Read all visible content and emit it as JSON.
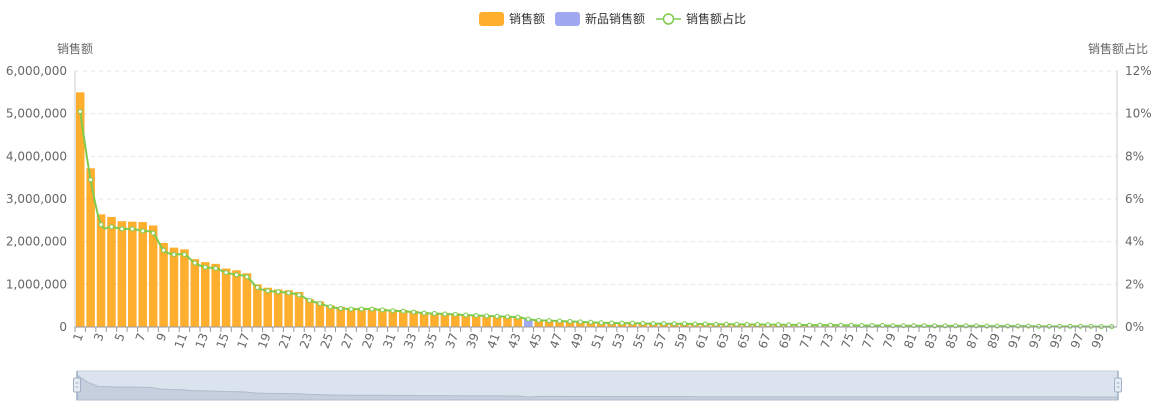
{
  "legend": [
    {
      "label": "销售额",
      "color": "#FFAE2E",
      "marker": "rect"
    },
    {
      "label": "新品销售额",
      "color": "#A0A8F2",
      "marker": "rect"
    },
    {
      "label": "销售额占比",
      "color": "#7ECB4E",
      "marker": "line-circle"
    }
  ],
  "axes": {
    "y_left_name": "销售额",
    "y_right_name": "销售额占比"
  },
  "chart_data": {
    "type": "bar",
    "x": [
      1,
      2,
      3,
      4,
      5,
      6,
      7,
      8,
      9,
      10,
      11,
      12,
      13,
      14,
      15,
      16,
      17,
      18,
      19,
      20,
      21,
      22,
      23,
      24,
      25,
      26,
      27,
      28,
      29,
      30,
      31,
      32,
      33,
      34,
      35,
      36,
      37,
      38,
      39,
      40,
      41,
      42,
      43,
      44,
      45,
      46,
      47,
      48,
      49,
      50,
      51,
      52,
      53,
      54,
      55,
      56,
      57,
      58,
      59,
      60,
      61,
      62,
      63,
      64,
      65,
      66,
      67,
      68,
      69,
      70,
      71,
      72,
      73,
      74,
      75,
      76,
      77,
      78,
      79,
      80,
      81,
      82,
      83,
      84,
      85,
      86,
      87,
      88,
      89,
      90,
      91,
      92,
      93,
      94,
      95,
      96,
      97,
      98,
      99,
      100
    ],
    "x_tick_labels": [
      "1",
      "3",
      "5",
      "7",
      "9",
      "11",
      "13",
      "15",
      "17",
      "19",
      "21",
      "23",
      "25",
      "27",
      "29",
      "31",
      "33",
      "35",
      "37",
      "39",
      "41",
      "43",
      "45",
      "47",
      "49",
      "51",
      "53",
      "55",
      "57",
      "59",
      "61",
      "63",
      "65",
      "67",
      "69",
      "71",
      "73",
      "75",
      "77",
      "79",
      "81",
      "83",
      "85",
      "87",
      "89",
      "91",
      "93",
      "95",
      "97",
      "99"
    ],
    "series": [
      {
        "name": "销售额",
        "axis": "left",
        "color": "#FFAE2E",
        "values": [
          5500000,
          3720000,
          2640000,
          2580000,
          2480000,
          2470000,
          2460000,
          2380000,
          1970000,
          1860000,
          1820000,
          1590000,
          1520000,
          1480000,
          1370000,
          1330000,
          1260000,
          1000000,
          920000,
          880000,
          860000,
          820000,
          660000,
          600000,
          510000,
          470000,
          450000,
          450000,
          450000,
          430000,
          410000,
          400000,
          380000,
          350000,
          340000,
          330000,
          320000,
          300000,
          290000,
          280000,
          270000,
          260000,
          250000,
          0,
          170000,
          160000,
          150000,
          140000,
          130000,
          120000,
          110000,
          105000,
          100000,
          95000,
          90000,
          88000,
          85000,
          83000,
          80000,
          78000,
          75000,
          72000,
          70000,
          68000,
          65000,
          62000,
          60000,
          57000,
          55000,
          52000,
          50000,
          48000,
          46000,
          44000,
          42000,
          40000,
          38000,
          36000,
          34000,
          32000,
          31000,
          30000,
          29000,
          28000,
          27000,
          26000,
          25000,
          24000,
          23000,
          22000,
          21000,
          20000,
          19000,
          18000,
          17000,
          16000,
          15000,
          14000,
          13000,
          12000
        ]
      },
      {
        "name": "新品销售额",
        "axis": "left",
        "color": "#A0A8F2",
        "values": [
          0,
          0,
          0,
          0,
          0,
          0,
          0,
          0,
          0,
          0,
          0,
          0,
          0,
          0,
          0,
          0,
          0,
          0,
          0,
          0,
          0,
          0,
          0,
          0,
          0,
          0,
          0,
          0,
          0,
          0,
          0,
          0,
          0,
          0,
          0,
          0,
          0,
          0,
          0,
          0,
          0,
          0,
          0,
          200000,
          0,
          0,
          0,
          0,
          0,
          0,
          0,
          0,
          0,
          0,
          0,
          0,
          0,
          0,
          0,
          0,
          0,
          0,
          0,
          0,
          0,
          0,
          0,
          0,
          0,
          0,
          0,
          0,
          0,
          0,
          0,
          0,
          0,
          0,
          0,
          0,
          0,
          0,
          0,
          0,
          0,
          0,
          0,
          0,
          0,
          0,
          0,
          0,
          0,
          0,
          0,
          0,
          0,
          0,
          0,
          0
        ]
      },
      {
        "name": "销售额占比",
        "axis": "right",
        "type": "line",
        "color": "#7ECB4E",
        "values": [
          10.1,
          6.9,
          4.8,
          4.7,
          4.6,
          4.6,
          4.5,
          4.4,
          3.6,
          3.4,
          3.4,
          3.0,
          2.8,
          2.75,
          2.55,
          2.45,
          2.35,
          1.85,
          1.7,
          1.65,
          1.6,
          1.5,
          1.25,
          1.1,
          0.95,
          0.87,
          0.84,
          0.84,
          0.84,
          0.8,
          0.76,
          0.74,
          0.7,
          0.65,
          0.63,
          0.61,
          0.59,
          0.56,
          0.54,
          0.52,
          0.5,
          0.48,
          0.46,
          0.37,
          0.31,
          0.3,
          0.28,
          0.26,
          0.24,
          0.22,
          0.2,
          0.19,
          0.18,
          0.18,
          0.17,
          0.16,
          0.16,
          0.15,
          0.15,
          0.14,
          0.14,
          0.13,
          0.13,
          0.13,
          0.12,
          0.12,
          0.11,
          0.11,
          0.1,
          0.1,
          0.09,
          0.09,
          0.09,
          0.08,
          0.08,
          0.07,
          0.07,
          0.07,
          0.06,
          0.06,
          0.06,
          0.06,
          0.05,
          0.05,
          0.05,
          0.05,
          0.05,
          0.04,
          0.04,
          0.04,
          0.04,
          0.04,
          0.03,
          0.03,
          0.03,
          0.03,
          0.03,
          0.03,
          0.02,
          0.02
        ]
      }
    ],
    "y_left": {
      "min": 0,
      "max": 6000000,
      "ticks": [
        0,
        1000000,
        2000000,
        3000000,
        4000000,
        5000000,
        6000000
      ],
      "tick_labels": [
        "0",
        "1,000,000",
        "2,000,000",
        "3,000,000",
        "4,000,000",
        "5,000,000",
        "6,000,000"
      ]
    },
    "y_right": {
      "min": 0,
      "max": 12,
      "ticks": [
        0,
        2,
        4,
        6,
        8,
        10,
        12
      ],
      "tick_labels": [
        "0%",
        "2%",
        "4%",
        "6%",
        "8%",
        "10%",
        "12%"
      ]
    },
    "grid": true,
    "legend_position": "top-center",
    "data_zoom": {
      "visible": true,
      "start": 0,
      "end": 100
    }
  }
}
